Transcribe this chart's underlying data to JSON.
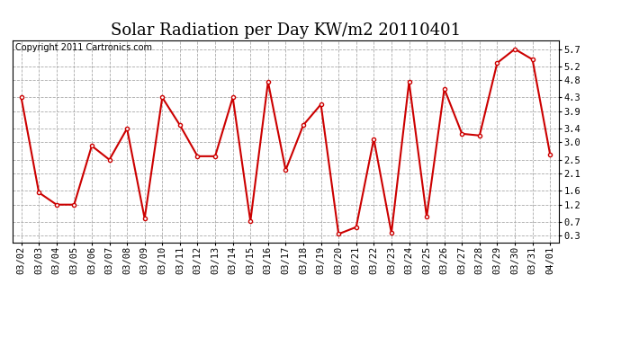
{
  "title": "Solar Radiation per Day KW/m2 20110401",
  "copyright": "Copyright 2011 Cartronics.com",
  "dates": [
    "03/02",
    "03/03",
    "03/04",
    "03/05",
    "03/06",
    "03/07",
    "03/08",
    "03/09",
    "03/10",
    "03/11",
    "03/12",
    "03/13",
    "03/14",
    "03/15",
    "03/16",
    "03/17",
    "03/18",
    "03/19",
    "03/20",
    "03/21",
    "03/22",
    "03/23",
    "03/24",
    "03/25",
    "03/26",
    "03/27",
    "03/28",
    "03/29",
    "03/30",
    "03/31",
    "04/01"
  ],
  "values": [
    4.3,
    1.55,
    1.2,
    1.2,
    2.9,
    2.5,
    3.4,
    0.8,
    4.3,
    3.5,
    2.6,
    2.6,
    4.3,
    0.72,
    4.75,
    2.2,
    3.5,
    4.1,
    0.35,
    0.55,
    3.1,
    0.38,
    4.75,
    0.85,
    4.55,
    3.25,
    3.2,
    5.3,
    5.7,
    5.4,
    2.65
  ],
  "line_color": "#cc0000",
  "marker": "o",
  "marker_size": 3,
  "bg_color": "#ffffff",
  "plot_bg_color": "#ffffff",
  "grid_color": "#aaaaaa",
  "yticks": [
    0.3,
    0.7,
    1.2,
    1.6,
    2.1,
    2.5,
    3.0,
    3.4,
    3.9,
    4.3,
    4.8,
    5.2,
    5.7
  ],
  "ylim": [
    0.1,
    5.95
  ],
  "title_fontsize": 13,
  "tick_fontsize": 7.5,
  "copyright_fontsize": 7
}
